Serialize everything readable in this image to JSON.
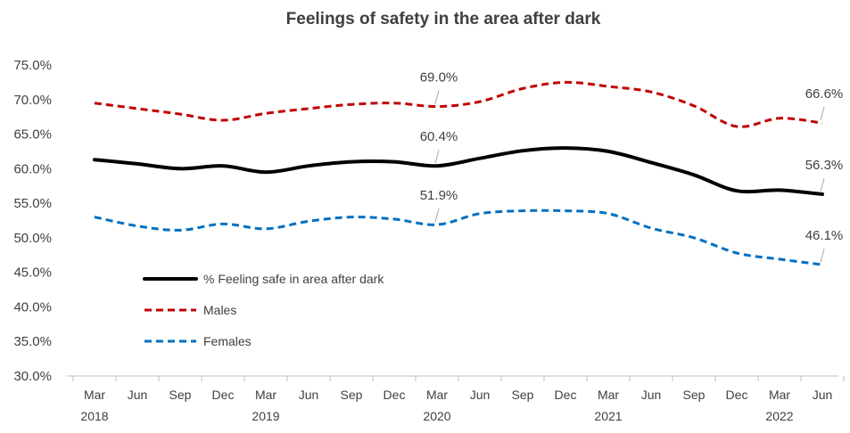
{
  "chart_data": {
    "type": "line",
    "title": "Feelings of safety in the area after dark",
    "xlabel": "",
    "ylabel": "",
    "ylim": [
      30.0,
      75.0
    ],
    "y_tick_labels": [
      "30.0%",
      "35.0%",
      "40.0%",
      "45.0%",
      "50.0%",
      "55.0%",
      "60.0%",
      "65.0%",
      "70.0%",
      "75.0%"
    ],
    "categories": [
      "Mar",
      "Jun",
      "Sep",
      "Dec",
      "Mar",
      "Jun",
      "Sep",
      "Dec",
      "Mar",
      "Jun",
      "Sep",
      "Dec",
      "Mar",
      "Jun",
      "Sep",
      "Dec",
      "Mar",
      "Jun"
    ],
    "year_labels": [
      {
        "index": 0,
        "label": "2018"
      },
      {
        "index": 4,
        "label": "2019"
      },
      {
        "index": 8,
        "label": "2020"
      },
      {
        "index": 12,
        "label": "2021"
      },
      {
        "index": 16,
        "label": "2022"
      }
    ],
    "grid": false,
    "legend_position": "bottom-left",
    "series": [
      {
        "name": "% Feeling safe in area after dark",
        "color": "#000000",
        "dash": "solid",
        "values": [
          61.3,
          60.7,
          60.0,
          60.4,
          59.5,
          60.4,
          61.0,
          61.0,
          60.4,
          61.5,
          62.6,
          63.0,
          62.5,
          60.9,
          59.1,
          56.8,
          56.9,
          56.3
        ]
      },
      {
        "name": "Males",
        "color": "#c00000",
        "dash": "dashed",
        "values": [
          69.5,
          68.7,
          67.9,
          67.0,
          68.0,
          68.7,
          69.3,
          69.5,
          69.0,
          69.7,
          71.6,
          72.5,
          71.9,
          71.1,
          69.1,
          66.1,
          67.3,
          66.6
        ]
      },
      {
        "name": "Females",
        "color": "#0070c0",
        "dash": "dashed",
        "values": [
          53.0,
          51.7,
          51.1,
          52.0,
          51.3,
          52.4,
          53.0,
          52.7,
          51.9,
          53.5,
          53.9,
          53.9,
          53.5,
          51.4,
          50.0,
          47.8,
          46.9,
          46.1
        ]
      }
    ],
    "annotations": [
      {
        "series": 1,
        "index": 8,
        "label": "69.0%"
      },
      {
        "series": 0,
        "index": 8,
        "label": "60.4%"
      },
      {
        "series": 2,
        "index": 8,
        "label": "51.9%"
      },
      {
        "series": 1,
        "index": 17,
        "label": "66.6%"
      },
      {
        "series": 0,
        "index": 17,
        "label": "56.3%"
      },
      {
        "series": 2,
        "index": 17,
        "label": "46.1%"
      }
    ]
  }
}
